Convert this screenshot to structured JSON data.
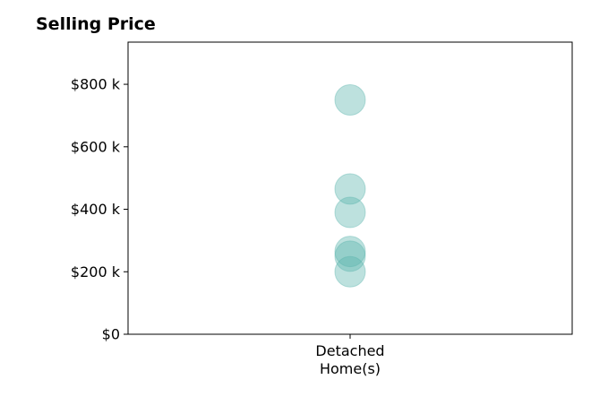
{
  "chart_data": {
    "type": "scatter",
    "title": "Selling Price",
    "categories": [
      "Detached\nHome(s)"
    ],
    "points": [
      {
        "category": 0,
        "value": 750000
      },
      {
        "category": 0,
        "value": 465000
      },
      {
        "category": 0,
        "value": 390000
      },
      {
        "category": 0,
        "value": 265000
      },
      {
        "category": 0,
        "value": 250000
      },
      {
        "category": 0,
        "value": 200000
      }
    ],
    "ylim": [
      0,
      935000
    ],
    "yticks": [
      {
        "value": 0,
        "label": "$0"
      },
      {
        "value": 200000,
        "label": "$200 k"
      },
      {
        "value": 400000,
        "label": "$400 k"
      },
      {
        "value": 600000,
        "label": "$600 k"
      },
      {
        "value": 800000,
        "label": "$800 k"
      }
    ],
    "xlabel": "",
    "ylabel": "",
    "grid": false,
    "marker_color": "#5ab4ac",
    "marker_opacity": 0.4
  }
}
